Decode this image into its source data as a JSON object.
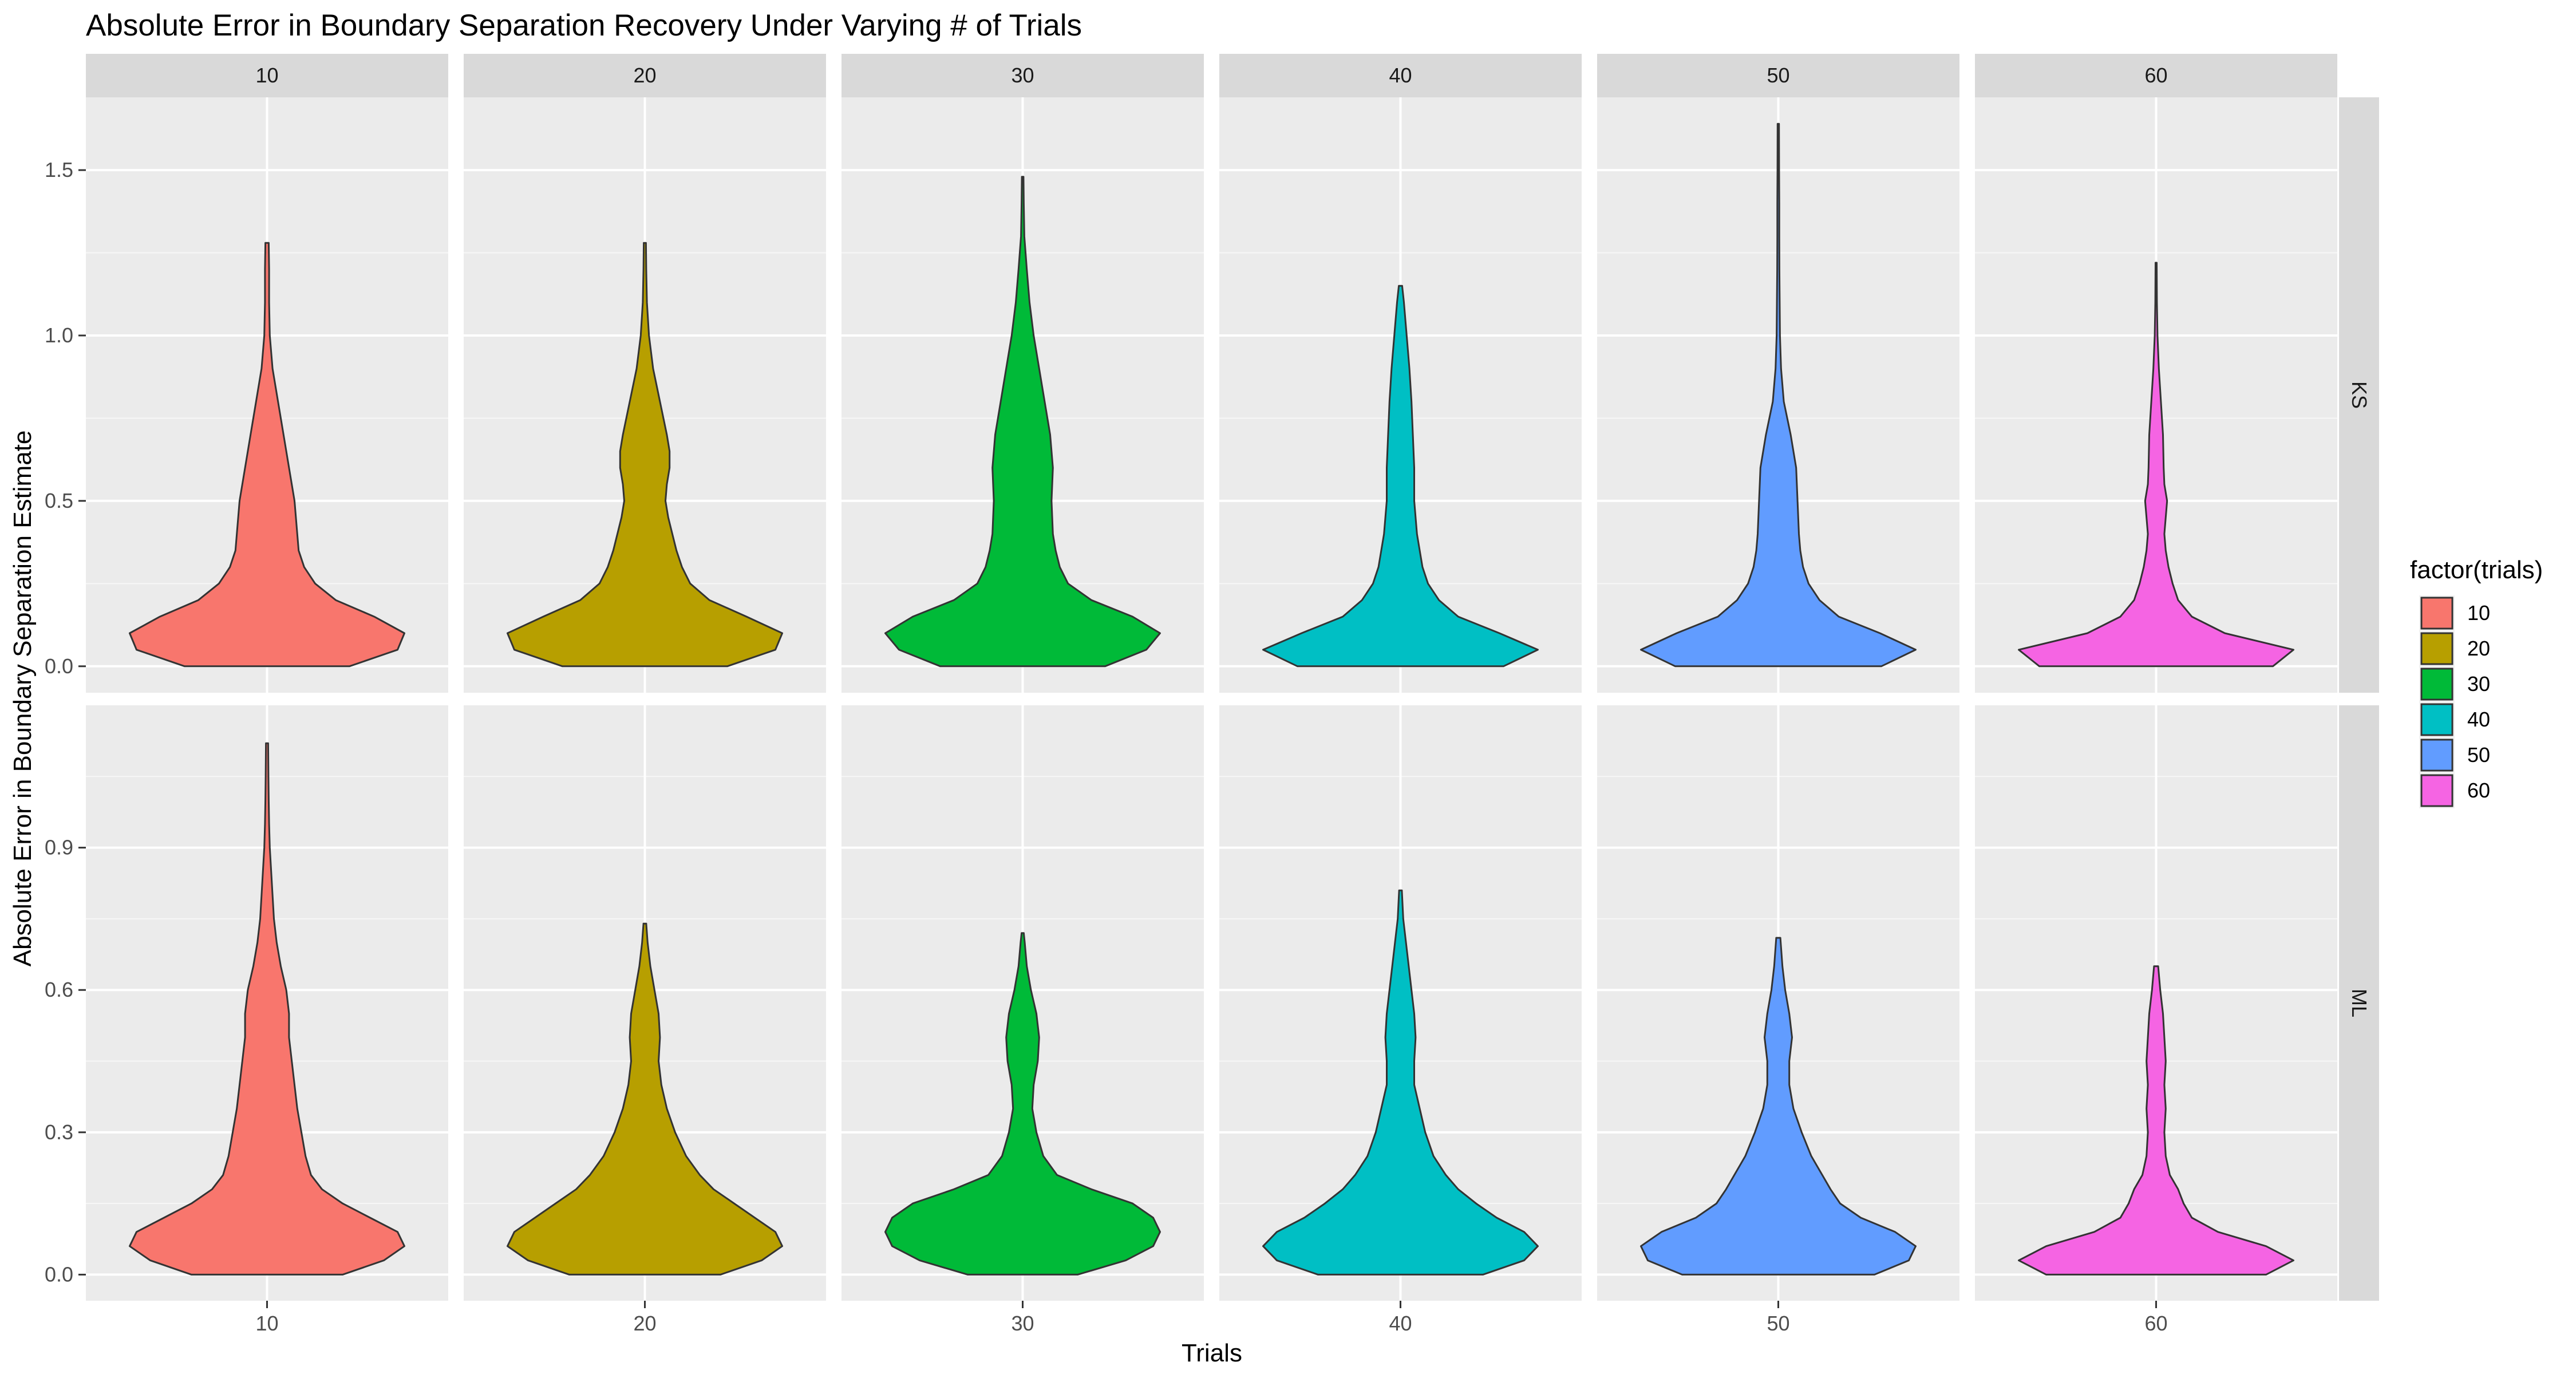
{
  "chart_data": {
    "type": "violin",
    "title": "Absolute Error in Boundary Separation Recovery Under Varying # of Trials",
    "xlabel": "Trials",
    "ylabel": "Absolute Error in Boundary Separation Estimate",
    "legend_title": "factor(trials)",
    "legend_position": "right",
    "grid": true,
    "facet_columns": [
      "10",
      "20",
      "30",
      "40",
      "50",
      "60"
    ],
    "facet_rows": [
      "KS",
      "ML"
    ],
    "categories": [
      "10",
      "20",
      "30",
      "40",
      "50",
      "60"
    ],
    "colors": {
      "10": "#F8766D",
      "20": "#B79F00",
      "30": "#00BA38",
      "40": "#00BFC4",
      "50": "#619CFF",
      "60": "#F564E3"
    },
    "rows": [
      {
        "name": "KS",
        "ylim": [
          -0.08,
          1.72
        ],
        "yticks": [
          0.0,
          0.5,
          1.0,
          1.5
        ],
        "ytick_labels": [
          "0.0",
          "0.5",
          "1.0",
          "1.5"
        ],
        "series": [
          {
            "name": "10",
            "y": [
              0.0,
              0.05,
              0.1,
              0.15,
              0.2,
              0.25,
              0.3,
              0.35,
              0.4,
              0.5,
              0.6,
              0.7,
              0.8,
              0.9,
              1.0,
              1.1,
              1.2,
              1.28
            ],
            "density": [
              0.6,
              0.95,
              1.0,
              0.78,
              0.5,
              0.35,
              0.27,
              0.23,
              0.22,
              0.2,
              0.16,
              0.12,
              0.08,
              0.04,
              0.02,
              0.015,
              0.015,
              0.012
            ]
          },
          {
            "name": "20",
            "y": [
              0.0,
              0.05,
              0.1,
              0.15,
              0.2,
              0.25,
              0.3,
              0.35,
              0.4,
              0.45,
              0.5,
              0.55,
              0.6,
              0.65,
              0.7,
              0.8,
              0.9,
              1.0,
              1.1,
              1.2,
              1.28
            ],
            "density": [
              0.6,
              0.95,
              1.0,
              0.74,
              0.47,
              0.33,
              0.27,
              0.23,
              0.2,
              0.17,
              0.15,
              0.16,
              0.18,
              0.18,
              0.16,
              0.11,
              0.06,
              0.03,
              0.015,
              0.01,
              0.008
            ]
          },
          {
            "name": "30",
            "y": [
              0.0,
              0.05,
              0.1,
              0.15,
              0.2,
              0.25,
              0.3,
              0.35,
              0.4,
              0.5,
              0.6,
              0.7,
              0.8,
              0.9,
              1.0,
              1.1,
              1.2,
              1.3,
              1.4,
              1.48
            ],
            "density": [
              0.6,
              0.9,
              1.0,
              0.8,
              0.5,
              0.33,
              0.27,
              0.24,
              0.22,
              0.21,
              0.22,
              0.2,
              0.16,
              0.12,
              0.08,
              0.05,
              0.03,
              0.012,
              0.008,
              0.006
            ]
          },
          {
            "name": "40",
            "y": [
              0.0,
              0.05,
              0.1,
              0.15,
              0.2,
              0.25,
              0.3,
              0.35,
              0.4,
              0.5,
              0.6,
              0.7,
              0.8,
              0.9,
              1.0,
              1.1,
              1.15
            ],
            "density": [
              0.75,
              1.0,
              0.72,
              0.42,
              0.28,
              0.2,
              0.16,
              0.14,
              0.12,
              0.1,
              0.1,
              0.09,
              0.08,
              0.065,
              0.045,
              0.025,
              0.012
            ]
          },
          {
            "name": "50",
            "y": [
              0.0,
              0.05,
              0.1,
              0.15,
              0.2,
              0.25,
              0.3,
              0.35,
              0.4,
              0.5,
              0.6,
              0.7,
              0.8,
              0.9,
              1.0,
              1.1,
              1.2,
              1.3,
              1.4,
              1.5,
              1.64
            ],
            "density": [
              0.75,
              1.0,
              0.74,
              0.44,
              0.3,
              0.22,
              0.18,
              0.16,
              0.15,
              0.14,
              0.13,
              0.09,
              0.04,
              0.02,
              0.012,
              0.01,
              0.008,
              0.007,
              0.007,
              0.006,
              0.005
            ]
          },
          {
            "name": "60",
            "y": [
              0.0,
              0.05,
              0.1,
              0.15,
              0.2,
              0.25,
              0.3,
              0.35,
              0.4,
              0.45,
              0.5,
              0.55,
              0.6,
              0.7,
              0.8,
              0.9,
              1.0,
              1.1,
              1.22
            ],
            "density": [
              0.85,
              1.0,
              0.5,
              0.26,
              0.16,
              0.12,
              0.09,
              0.07,
              0.06,
              0.07,
              0.08,
              0.06,
              0.055,
              0.05,
              0.035,
              0.02,
              0.01,
              0.006,
              0.004
            ]
          }
        ]
      },
      {
        "name": "ML",
        "ylim": [
          -0.055,
          1.2
        ],
        "yticks": [
          0.0,
          0.3,
          0.6,
          0.9
        ],
        "ytick_labels": [
          "0.0",
          "0.3",
          "0.6",
          "0.9"
        ],
        "series": [
          {
            "name": "10",
            "y": [
              0.0,
              0.03,
              0.06,
              0.09,
              0.12,
              0.15,
              0.18,
              0.21,
              0.25,
              0.3,
              0.35,
              0.4,
              0.45,
              0.5,
              0.55,
              0.6,
              0.65,
              0.7,
              0.75,
              0.8,
              0.85,
              0.9,
              0.95,
              1.0,
              1.05,
              1.12
            ],
            "density": [
              0.55,
              0.85,
              1.0,
              0.95,
              0.75,
              0.55,
              0.4,
              0.32,
              0.28,
              0.25,
              0.22,
              0.2,
              0.18,
              0.16,
              0.16,
              0.14,
              0.1,
              0.07,
              0.05,
              0.04,
              0.03,
              0.02,
              0.015,
              0.012,
              0.01,
              0.008
            ]
          },
          {
            "name": "20",
            "y": [
              0.0,
              0.03,
              0.06,
              0.09,
              0.12,
              0.15,
              0.18,
              0.21,
              0.25,
              0.3,
              0.35,
              0.4,
              0.45,
              0.5,
              0.55,
              0.6,
              0.65,
              0.7,
              0.74
            ],
            "density": [
              0.55,
              0.85,
              1.0,
              0.95,
              0.8,
              0.65,
              0.5,
              0.4,
              0.3,
              0.22,
              0.16,
              0.12,
              0.1,
              0.11,
              0.1,
              0.07,
              0.04,
              0.02,
              0.01
            ]
          },
          {
            "name": "30",
            "y": [
              0.0,
              0.03,
              0.06,
              0.09,
              0.12,
              0.15,
              0.18,
              0.21,
              0.25,
              0.3,
              0.35,
              0.4,
              0.45,
              0.5,
              0.55,
              0.6,
              0.65,
              0.7,
              0.72
            ],
            "density": [
              0.4,
              0.75,
              0.95,
              1.0,
              0.95,
              0.8,
              0.5,
              0.25,
              0.15,
              0.1,
              0.07,
              0.08,
              0.11,
              0.12,
              0.1,
              0.06,
              0.03,
              0.015,
              0.008
            ]
          },
          {
            "name": "40",
            "y": [
              0.0,
              0.03,
              0.06,
              0.09,
              0.12,
              0.15,
              0.18,
              0.21,
              0.25,
              0.3,
              0.35,
              0.4,
              0.45,
              0.5,
              0.55,
              0.6,
              0.65,
              0.7,
              0.75,
              0.81
            ],
            "density": [
              0.6,
              0.9,
              1.0,
              0.9,
              0.7,
              0.55,
              0.42,
              0.33,
              0.24,
              0.18,
              0.14,
              0.1,
              0.1,
              0.11,
              0.1,
              0.08,
              0.06,
              0.04,
              0.02,
              0.01
            ]
          },
          {
            "name": "50",
            "y": [
              0.0,
              0.03,
              0.06,
              0.09,
              0.12,
              0.15,
              0.18,
              0.21,
              0.25,
              0.3,
              0.35,
              0.4,
              0.45,
              0.5,
              0.55,
              0.6,
              0.65,
              0.71
            ],
            "density": [
              0.7,
              0.95,
              1.0,
              0.85,
              0.6,
              0.45,
              0.38,
              0.32,
              0.24,
              0.17,
              0.11,
              0.08,
              0.08,
              0.1,
              0.08,
              0.05,
              0.03,
              0.015
            ]
          },
          {
            "name": "60",
            "y": [
              0.0,
              0.03,
              0.06,
              0.09,
              0.12,
              0.15,
              0.18,
              0.21,
              0.25,
              0.3,
              0.35,
              0.4,
              0.45,
              0.5,
              0.55,
              0.6,
              0.65
            ],
            "density": [
              0.8,
              1.0,
              0.8,
              0.45,
              0.26,
              0.2,
              0.16,
              0.1,
              0.07,
              0.06,
              0.07,
              0.06,
              0.07,
              0.06,
              0.05,
              0.03,
              0.015
            ]
          }
        ]
      }
    ]
  }
}
